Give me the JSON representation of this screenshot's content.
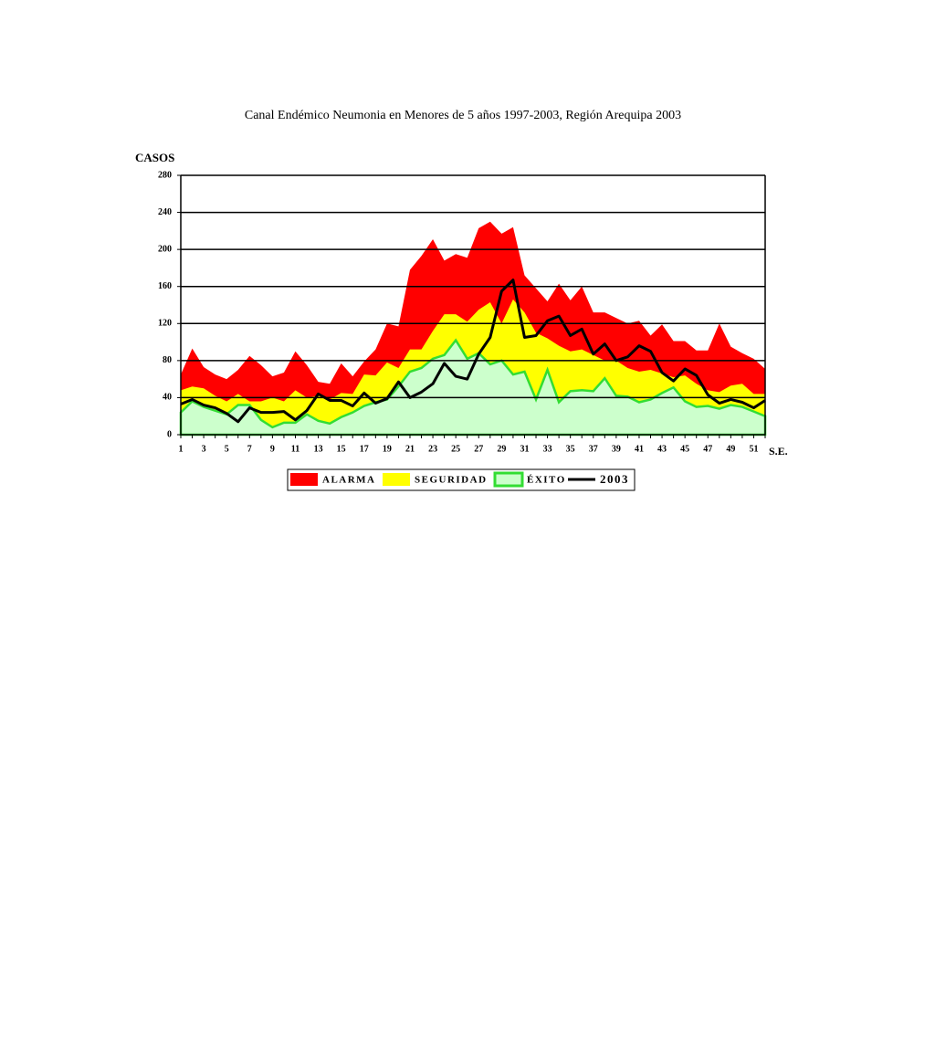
{
  "chart_data": {
    "type": "endemic-channel",
    "title": "Canal Endémico Neumonia en Menores de 5 años 1997-2003, Región  Arequipa 2003",
    "y_label": "CASOS",
    "x_label": "S.E.",
    "categories": [
      "1",
      null,
      "3",
      null,
      "5",
      null,
      "7",
      null,
      "9",
      null,
      "11",
      null,
      "13",
      null,
      "15",
      null,
      "17",
      null,
      "19",
      null,
      "21",
      null,
      "23",
      null,
      "25",
      null,
      "27",
      null,
      "29",
      null,
      "31",
      null,
      "33",
      null,
      "35",
      null,
      "37",
      null,
      "39",
      null,
      "41",
      null,
      "43",
      null,
      "45",
      null,
      "47",
      null,
      "49",
      null,
      "51",
      null
    ],
    "ylim": [
      0,
      280
    ],
    "yticks": [
      0,
      40,
      80,
      120,
      160,
      200,
      240,
      280
    ],
    "grid": true,
    "series": [
      {
        "name": "ALARMA",
        "color": "#ff0000",
        "kind": "area",
        "values": [
          65,
          93,
          73,
          65,
          60,
          70,
          85,
          75,
          63,
          67,
          90,
          75,
          57,
          55,
          77,
          63,
          79,
          92,
          120,
          117,
          178,
          193,
          211,
          188,
          195,
          191,
          223,
          230,
          217,
          224,
          172,
          158,
          144,
          163,
          145,
          160,
          132,
          132,
          126,
          120,
          123,
          107,
          119,
          101,
          101,
          91,
          91,
          120,
          95,
          88,
          82,
          71
        ]
      },
      {
        "name": "SEGURIDAD",
        "color": "#ffff00",
        "kind": "area",
        "values": [
          48,
          52,
          50,
          42,
          36,
          44,
          36,
          36,
          40,
          36,
          48,
          40,
          42,
          38,
          45,
          44,
          65,
          64,
          78,
          72,
          92,
          92,
          112,
          130,
          130,
          122,
          135,
          143,
          120,
          146,
          132,
          110,
          104,
          96,
          90,
          92,
          86,
          80,
          80,
          72,
          68,
          70,
          66,
          62,
          64,
          55,
          48,
          46,
          53,
          55,
          44,
          44
        ]
      },
      {
        "name": "ÉXITO",
        "color": "#ccffcc",
        "edge": "#33dd33",
        "kind": "area",
        "values": [
          24,
          36,
          30,
          26,
          22,
          32,
          32,
          16,
          8,
          13,
          13,
          22,
          15,
          12,
          19,
          24,
          31,
          35,
          38,
          52,
          68,
          72,
          82,
          86,
          102,
          82,
          88,
          76,
          80,
          65,
          68,
          38,
          70,
          35,
          47,
          48,
          47,
          61,
          42,
          41,
          35,
          38,
          45,
          51,
          36,
          30,
          31,
          28,
          32,
          30,
          25,
          20
        ]
      },
      {
        "name": "2003",
        "color": "#000000",
        "kind": "line",
        "values": [
          33,
          38,
          32,
          29,
          23,
          14,
          29,
          24,
          24,
          25,
          16,
          26,
          44,
          37,
          37,
          31,
          45,
          34,
          39,
          57,
          40,
          46,
          55,
          77,
          63,
          60,
          87,
          105,
          155,
          167,
          105,
          107,
          123,
          128,
          107,
          114,
          87,
          98,
          80,
          84,
          96,
          90,
          67,
          58,
          71,
          64,
          43,
          34,
          38,
          35,
          29,
          37
        ]
      }
    ]
  }
}
